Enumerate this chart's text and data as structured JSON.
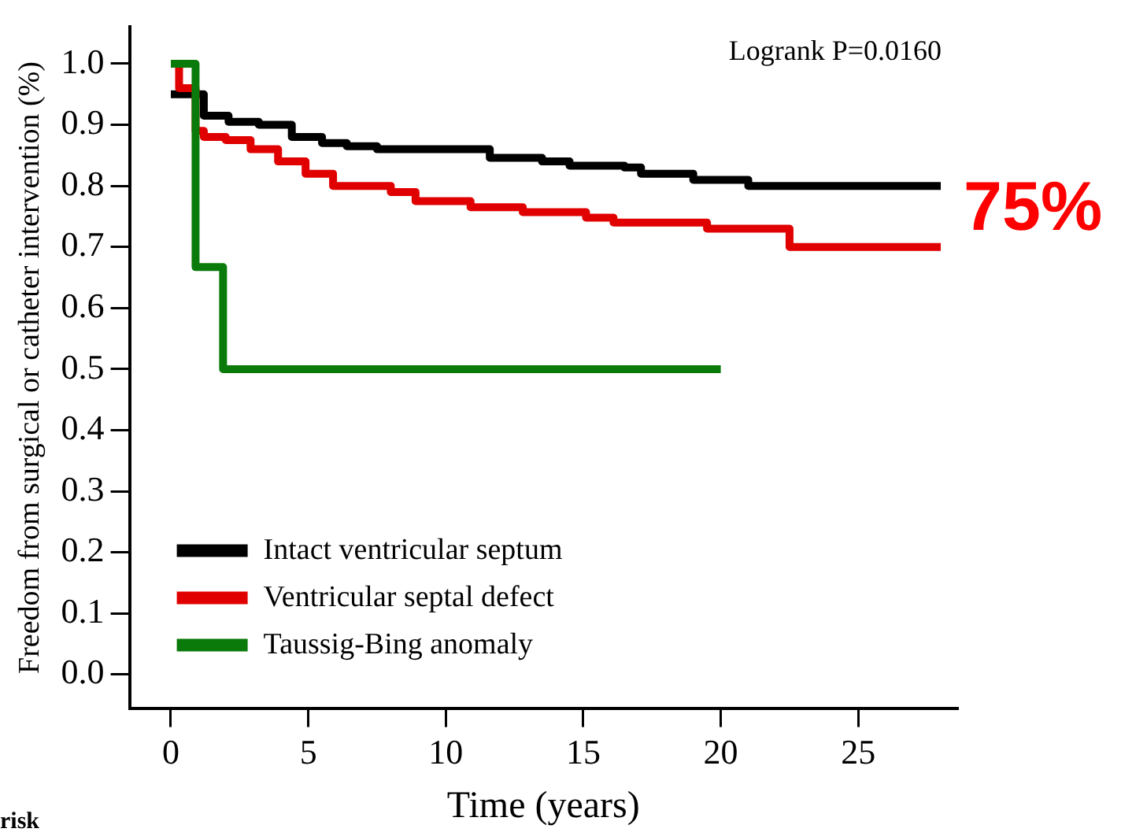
{
  "chart_data": {
    "type": "step",
    "xlabel": "Time (years)",
    "ylabel": "Freedom from surgical or catheter intervention (%)",
    "xlim": [
      -1.5,
      28.6
    ],
    "xticks": [
      0,
      5,
      10,
      15,
      20,
      25
    ],
    "ylim": [
      -0.055,
      1.06
    ],
    "yticks": [
      {
        "value": 0,
        "label": "0.0"
      },
      {
        "value": 0.1,
        "label": "0.1"
      },
      {
        "value": 0.2,
        "label": "0.2"
      },
      {
        "value": 0.3,
        "label": "0.3"
      },
      {
        "value": 0.4,
        "label": "0.4"
      },
      {
        "value": 0.5,
        "label": "0.5"
      },
      {
        "value": 0.6,
        "label": "0.6"
      },
      {
        "value": 0.7,
        "label": "0.7"
      },
      {
        "value": 0.8,
        "label": "0.8"
      },
      {
        "value": 0.9,
        "label": "0.9"
      },
      {
        "value": 1,
        "label": "1.0"
      }
    ],
    "grid": false,
    "legend": "bottom left",
    "marker": "none",
    "line_style": "solid",
    "annotations": [
      "Logrank P=0.0160",
      "75%",
      "risk"
    ],
    "series": [
      {
        "name": "Intact ventricular septum",
        "color": "#000000",
        "x": [
          0,
          1.2,
          2.1,
          3.2,
          4.4,
          5.5,
          6.4,
          7.5,
          11.6,
          13.5,
          14.5,
          16.5,
          17.1,
          19,
          21,
          28
        ],
        "values": [
          0.95,
          0.915,
          0.905,
          0.9,
          0.88,
          0.87,
          0.865,
          0.86,
          0.846,
          0.84,
          0.833,
          0.83,
          0.82,
          0.81,
          0.8,
          0.8
        ]
      },
      {
        "name": "Ventricular septal defect",
        "color": "#e00000",
        "x": [
          0,
          0.3,
          0.9,
          1.2,
          2,
          2.9,
          3.9,
          4.9,
          5.9,
          8,
          8.9,
          10.9,
          12.8,
          15.1,
          16.1,
          19.5,
          22.5,
          28
        ],
        "values": [
          1,
          0.96,
          0.89,
          0.88,
          0.875,
          0.86,
          0.84,
          0.82,
          0.8,
          0.79,
          0.775,
          0.765,
          0.757,
          0.748,
          0.74,
          0.73,
          0.7,
          0.7
        ]
      },
      {
        "name": "Taussig-Bing anomaly",
        "color": "#0a7a0a",
        "x": [
          0,
          0.9,
          1.9,
          20
        ],
        "values": [
          1,
          0.667,
          0.5,
          0.5
        ]
      }
    ]
  }
}
